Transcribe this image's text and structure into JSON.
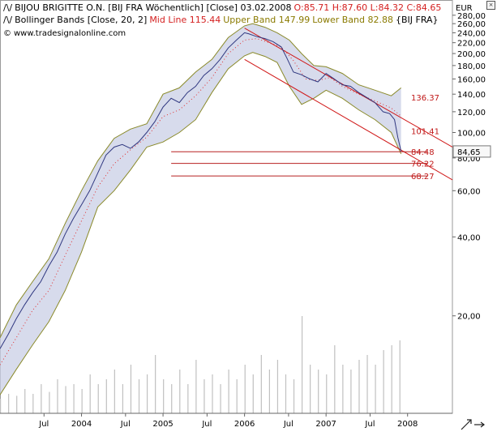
{
  "legend": {
    "line1": {
      "symbol": "/\\/",
      "instrument": "BIJOU BRIGITTE O.N. [BIJ FRA  Wöchentlich] [Close] 03.02.2008",
      "ohlc": "O:85.71 H:87.60 L:84.32 C:84.65"
    },
    "line2": {
      "symbol": "/\\/",
      "indicator": "Bollinger Bands [Close, 20, 2]",
      "mid": "Mid Line 115.44",
      "upper": "Upper Band 147.99",
      "lower": "Lower Band 82.88",
      "source": "{BIJ FRA}"
    },
    "line3": {
      "copyright_symbol": "©",
      "site": "www.tradesignalonline.com"
    }
  },
  "colors": {
    "price": "#303880",
    "band_fill": "#c9cfe6",
    "band_edge": "#8a8a2a",
    "mid_line": "#e03030",
    "channel": "#d01818",
    "level_line": "#b82020",
    "volume": "#c0c0c0",
    "last_price_tag_bg": "#f8f8f8"
  },
  "icons": {
    "corner": "close-icon",
    "zoom": "zoom-arrows-icon"
  },
  "chart_data": {
    "type": "line",
    "scale": "log",
    "currency": "EUR",
    "ylim": [
      8.5,
      320
    ],
    "y_ticks": [
      {
        "value": 280,
        "label": "280,00"
      },
      {
        "value": 260,
        "label": "260,00"
      },
      {
        "value": 240,
        "label": "240,00"
      },
      {
        "value": 220,
        "label": "220,00"
      },
      {
        "value": 200,
        "label": "200,00"
      },
      {
        "value": 180,
        "label": "180,00"
      },
      {
        "value": 160,
        "label": "160,00"
      },
      {
        "value": 140,
        "label": "140,00"
      },
      {
        "value": 120,
        "label": "120,00"
      },
      {
        "value": 100,
        "label": "100,00"
      },
      {
        "value": 80,
        "label": "80,00"
      },
      {
        "value": 60,
        "label": "60,00"
      },
      {
        "value": 40,
        "label": "40,00"
      },
      {
        "value": 20,
        "label": "20,00"
      }
    ],
    "x_range": [
      2003.0,
      2008.55
    ],
    "x_ticks": [
      {
        "value": 2003.54,
        "label": "Jul"
      },
      {
        "value": 2004.0,
        "label": "2004"
      },
      {
        "value": 2004.54,
        "label": "Jul"
      },
      {
        "value": 2005.0,
        "label": "2005"
      },
      {
        "value": 2005.54,
        "label": "Jul"
      },
      {
        "value": 2006.0,
        "label": "2006"
      },
      {
        "value": 2006.54,
        "label": "Jul"
      },
      {
        "value": 2007.0,
        "label": "2007"
      },
      {
        "value": 2007.54,
        "label": "Jul"
      },
      {
        "value": 2008.0,
        "label": "2008"
      }
    ],
    "series": [
      {
        "name": "Close",
        "x": [
          2003.0,
          2003.1,
          2003.2,
          2003.3,
          2003.4,
          2003.5,
          2003.6,
          2003.7,
          2003.8,
          2003.9,
          2004.0,
          2004.1,
          2004.2,
          2004.3,
          2004.4,
          2004.5,
          2004.6,
          2004.7,
          2004.8,
          2004.9,
          2005.0,
          2005.1,
          2005.2,
          2005.3,
          2005.4,
          2005.5,
          2005.6,
          2005.7,
          2005.8,
          2005.9,
          2006.0,
          2006.05,
          2006.15,
          2006.25,
          2006.35,
          2006.45,
          2006.52,
          2006.6,
          2006.7,
          2006.8,
          2006.9,
          2007.0,
          2007.1,
          2007.2,
          2007.3,
          2007.4,
          2007.5,
          2007.6,
          2007.7,
          2007.78,
          2007.84,
          2007.88,
          2007.92
        ],
        "y": [
          15,
          17,
          19.5,
          22,
          24.5,
          27,
          31,
          35,
          41,
          47,
          53,
          60,
          70,
          82,
          88,
          90,
          87,
          92,
          100,
          110,
          125,
          135,
          130,
          142,
          150,
          165,
          175,
          190,
          210,
          225,
          240,
          238,
          232,
          228,
          222,
          212,
          192,
          170,
          166,
          160,
          156,
          168,
          160,
          152,
          150,
          142,
          136,
          130,
          120,
          118,
          112,
          96,
          84.65
        ]
      },
      {
        "name": "Upper Band",
        "x": [
          2003.0,
          2003.2,
          2003.4,
          2003.6,
          2003.8,
          2004.0,
          2004.2,
          2004.4,
          2004.6,
          2004.8,
          2005.0,
          2005.2,
          2005.4,
          2005.6,
          2005.8,
          2006.0,
          2006.1,
          2006.25,
          2006.4,
          2006.55,
          2006.7,
          2006.85,
          2007.0,
          2007.2,
          2007.4,
          2007.6,
          2007.8,
          2007.92
        ],
        "y": [
          16.5,
          22,
          27,
          33,
          45,
          60,
          78,
          95,
          103,
          108,
          140,
          148,
          170,
          190,
          230,
          255,
          260,
          252,
          240,
          225,
          200,
          180,
          178,
          168,
          152,
          145,
          138,
          148
        ]
      },
      {
        "name": "Lower Band",
        "x": [
          2003.0,
          2003.2,
          2003.4,
          2003.6,
          2003.8,
          2004.0,
          2004.2,
          2004.4,
          2004.6,
          2004.8,
          2005.0,
          2005.2,
          2005.4,
          2005.6,
          2005.8,
          2006.0,
          2006.1,
          2006.25,
          2006.4,
          2006.55,
          2006.7,
          2006.85,
          2007.0,
          2007.2,
          2007.4,
          2007.6,
          2007.8,
          2007.92
        ],
        "y": [
          10,
          12.5,
          15.5,
          19,
          25,
          35,
          52,
          60,
          72,
          88,
          92,
          100,
          112,
          142,
          175,
          196,
          202,
          195,
          185,
          150,
          128,
          135,
          145,
          135,
          122,
          112,
          100,
          82.88
        ]
      },
      {
        "name": "Mid Line",
        "x": [
          2003.0,
          2003.2,
          2003.4,
          2003.6,
          2003.8,
          2004.0,
          2004.2,
          2004.4,
          2004.6,
          2004.8,
          2005.0,
          2005.2,
          2005.4,
          2005.6,
          2005.8,
          2006.0,
          2006.15,
          2006.3,
          2006.45,
          2006.6,
          2006.75,
          2006.9,
          2007.05,
          2007.2,
          2007.4,
          2007.6,
          2007.8,
          2007.92
        ],
        "y": [
          13,
          16.5,
          21,
          25,
          34,
          46,
          62,
          76,
          86,
          96,
          115,
          122,
          138,
          162,
          200,
          225,
          228,
          220,
          212,
          188,
          160,
          158,
          162,
          150,
          140,
          132,
          124,
          115.44
        ]
      }
    ],
    "channel": {
      "upper": {
        "x": [
          2006.0,
          2008.55
        ],
        "y": [
          250,
          88
        ]
      },
      "lower": {
        "x": [
          2006.0,
          2008.55
        ],
        "y": [
          190,
          66
        ]
      }
    },
    "levels": [
      {
        "value": 84.48,
        "label": "84.48",
        "x_start": 2005.1
      },
      {
        "value": 76.22,
        "label": "76.22",
        "x_start": 2005.1
      },
      {
        "value": 68.27,
        "label": "68.27",
        "x_start": 2005.1
      }
    ],
    "channel_labels": [
      {
        "value": 136.37,
        "label": "136.37",
        "x": 2007.88
      },
      {
        "value": 101.41,
        "label": "101.41",
        "x": 2007.88
      }
    ],
    "last_price": {
      "value": 84.65,
      "label": "84,65"
    },
    "volume": {
      "x": [
        2003.0,
        2003.1,
        2003.2,
        2003.3,
        2003.4,
        2003.5,
        2003.6,
        2003.7,
        2003.8,
        2003.9,
        2004.0,
        2004.1,
        2004.2,
        2004.3,
        2004.4,
        2004.5,
        2004.6,
        2004.7,
        2004.8,
        2004.9,
        2005.0,
        2005.1,
        2005.2,
        2005.3,
        2005.4,
        2005.5,
        2005.6,
        2005.7,
        2005.8,
        2005.9,
        2006.0,
        2006.1,
        2006.2,
        2006.3,
        2006.4,
        2006.5,
        2006.6,
        2006.7,
        2006.8,
        2006.9,
        2007.0,
        2007.1,
        2007.2,
        2007.3,
        2007.4,
        2007.5,
        2007.6,
        2007.7,
        2007.8,
        2007.9
      ],
      "y": [
        0.15,
        0.2,
        0.18,
        0.25,
        0.2,
        0.3,
        0.22,
        0.35,
        0.28,
        0.3,
        0.25,
        0.4,
        0.3,
        0.35,
        0.45,
        0.3,
        0.5,
        0.35,
        0.4,
        0.6,
        0.35,
        0.3,
        0.45,
        0.3,
        0.55,
        0.35,
        0.4,
        0.3,
        0.45,
        0.35,
        0.5,
        0.4,
        0.6,
        0.45,
        0.55,
        0.4,
        0.35,
        1.0,
        0.5,
        0.45,
        0.4,
        0.7,
        0.5,
        0.45,
        0.55,
        0.6,
        0.5,
        0.65,
        0.7,
        0.75
      ]
    }
  }
}
